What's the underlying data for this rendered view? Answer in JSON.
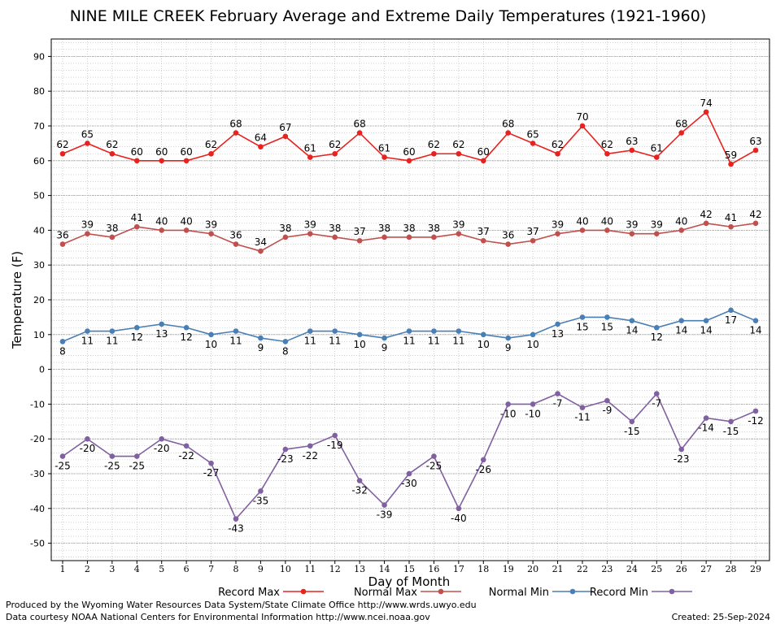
{
  "chart_data": {
    "type": "line",
    "title": "NINE MILE CREEK February Average and Extreme Daily Temperatures (1921-1960)",
    "xlabel": "Day of Month",
    "ylabel": "Temperature (F)",
    "ylim": [
      -55,
      95
    ],
    "yticks": [
      90,
      80,
      70,
      60,
      50,
      40,
      30,
      20,
      10,
      0,
      -10,
      -20,
      -30,
      -40,
      -50
    ],
    "x": [
      1,
      2,
      3,
      4,
      5,
      6,
      7,
      8,
      9,
      10,
      11,
      12,
      13,
      14,
      15,
      16,
      17,
      18,
      19,
      20,
      21,
      22,
      23,
      24,
      25,
      26,
      27,
      28,
      29
    ],
    "grid": true,
    "legend_position": "bottom",
    "series": [
      {
        "name": "Record Max",
        "color": "#e8221e",
        "label_pos": "above",
        "values": [
          62,
          65,
          62,
          60,
          60,
          60,
          62,
          68,
          64,
          67,
          61,
          62,
          68,
          61,
          60,
          62,
          62,
          60,
          68,
          65,
          62,
          70,
          62,
          63,
          61,
          68,
          74,
          59,
          63
        ]
      },
      {
        "name": "Normal Max",
        "color": "#c0504d",
        "label_pos": "above",
        "values": [
          36,
          39,
          38,
          41,
          40,
          40,
          39,
          36,
          34,
          38,
          39,
          38,
          37,
          38,
          38,
          38,
          39,
          37,
          36,
          37,
          39,
          40,
          40,
          39,
          39,
          40,
          42,
          41,
          42
        ]
      },
      {
        "name": "Normal Min",
        "color": "#4a7fb5",
        "label_pos": "below",
        "values": [
          8,
          11,
          11,
          12,
          13,
          12,
          10,
          11,
          9,
          8,
          11,
          11,
          10,
          9,
          11,
          11,
          11,
          10,
          9,
          10,
          13,
          15,
          15,
          14,
          12,
          14,
          14,
          17,
          14
        ]
      },
      {
        "name": "Record Min",
        "color": "#8060a0",
        "label_pos": "below",
        "values": [
          -25,
          -20,
          -25,
          -25,
          -20,
          -22,
          -27,
          -43,
          -35,
          -23,
          -22,
          -19,
          -32,
          -39,
          -30,
          -25,
          -40,
          -26,
          -10,
          -10,
          -7,
          -11,
          -9,
          -15,
          -7,
          -23,
          -14,
          -15,
          -12
        ]
      }
    ]
  },
  "footer": {
    "produced_by": "Produced by the Wyoming Water Resources Data System/State Climate Office http://www.wrds.uwyo.edu",
    "courtesy": "Data courtesy NOAA National Centers for Environmental Information http://www.ncei.noaa.gov",
    "created": "Created: 25-Sep-2024"
  }
}
